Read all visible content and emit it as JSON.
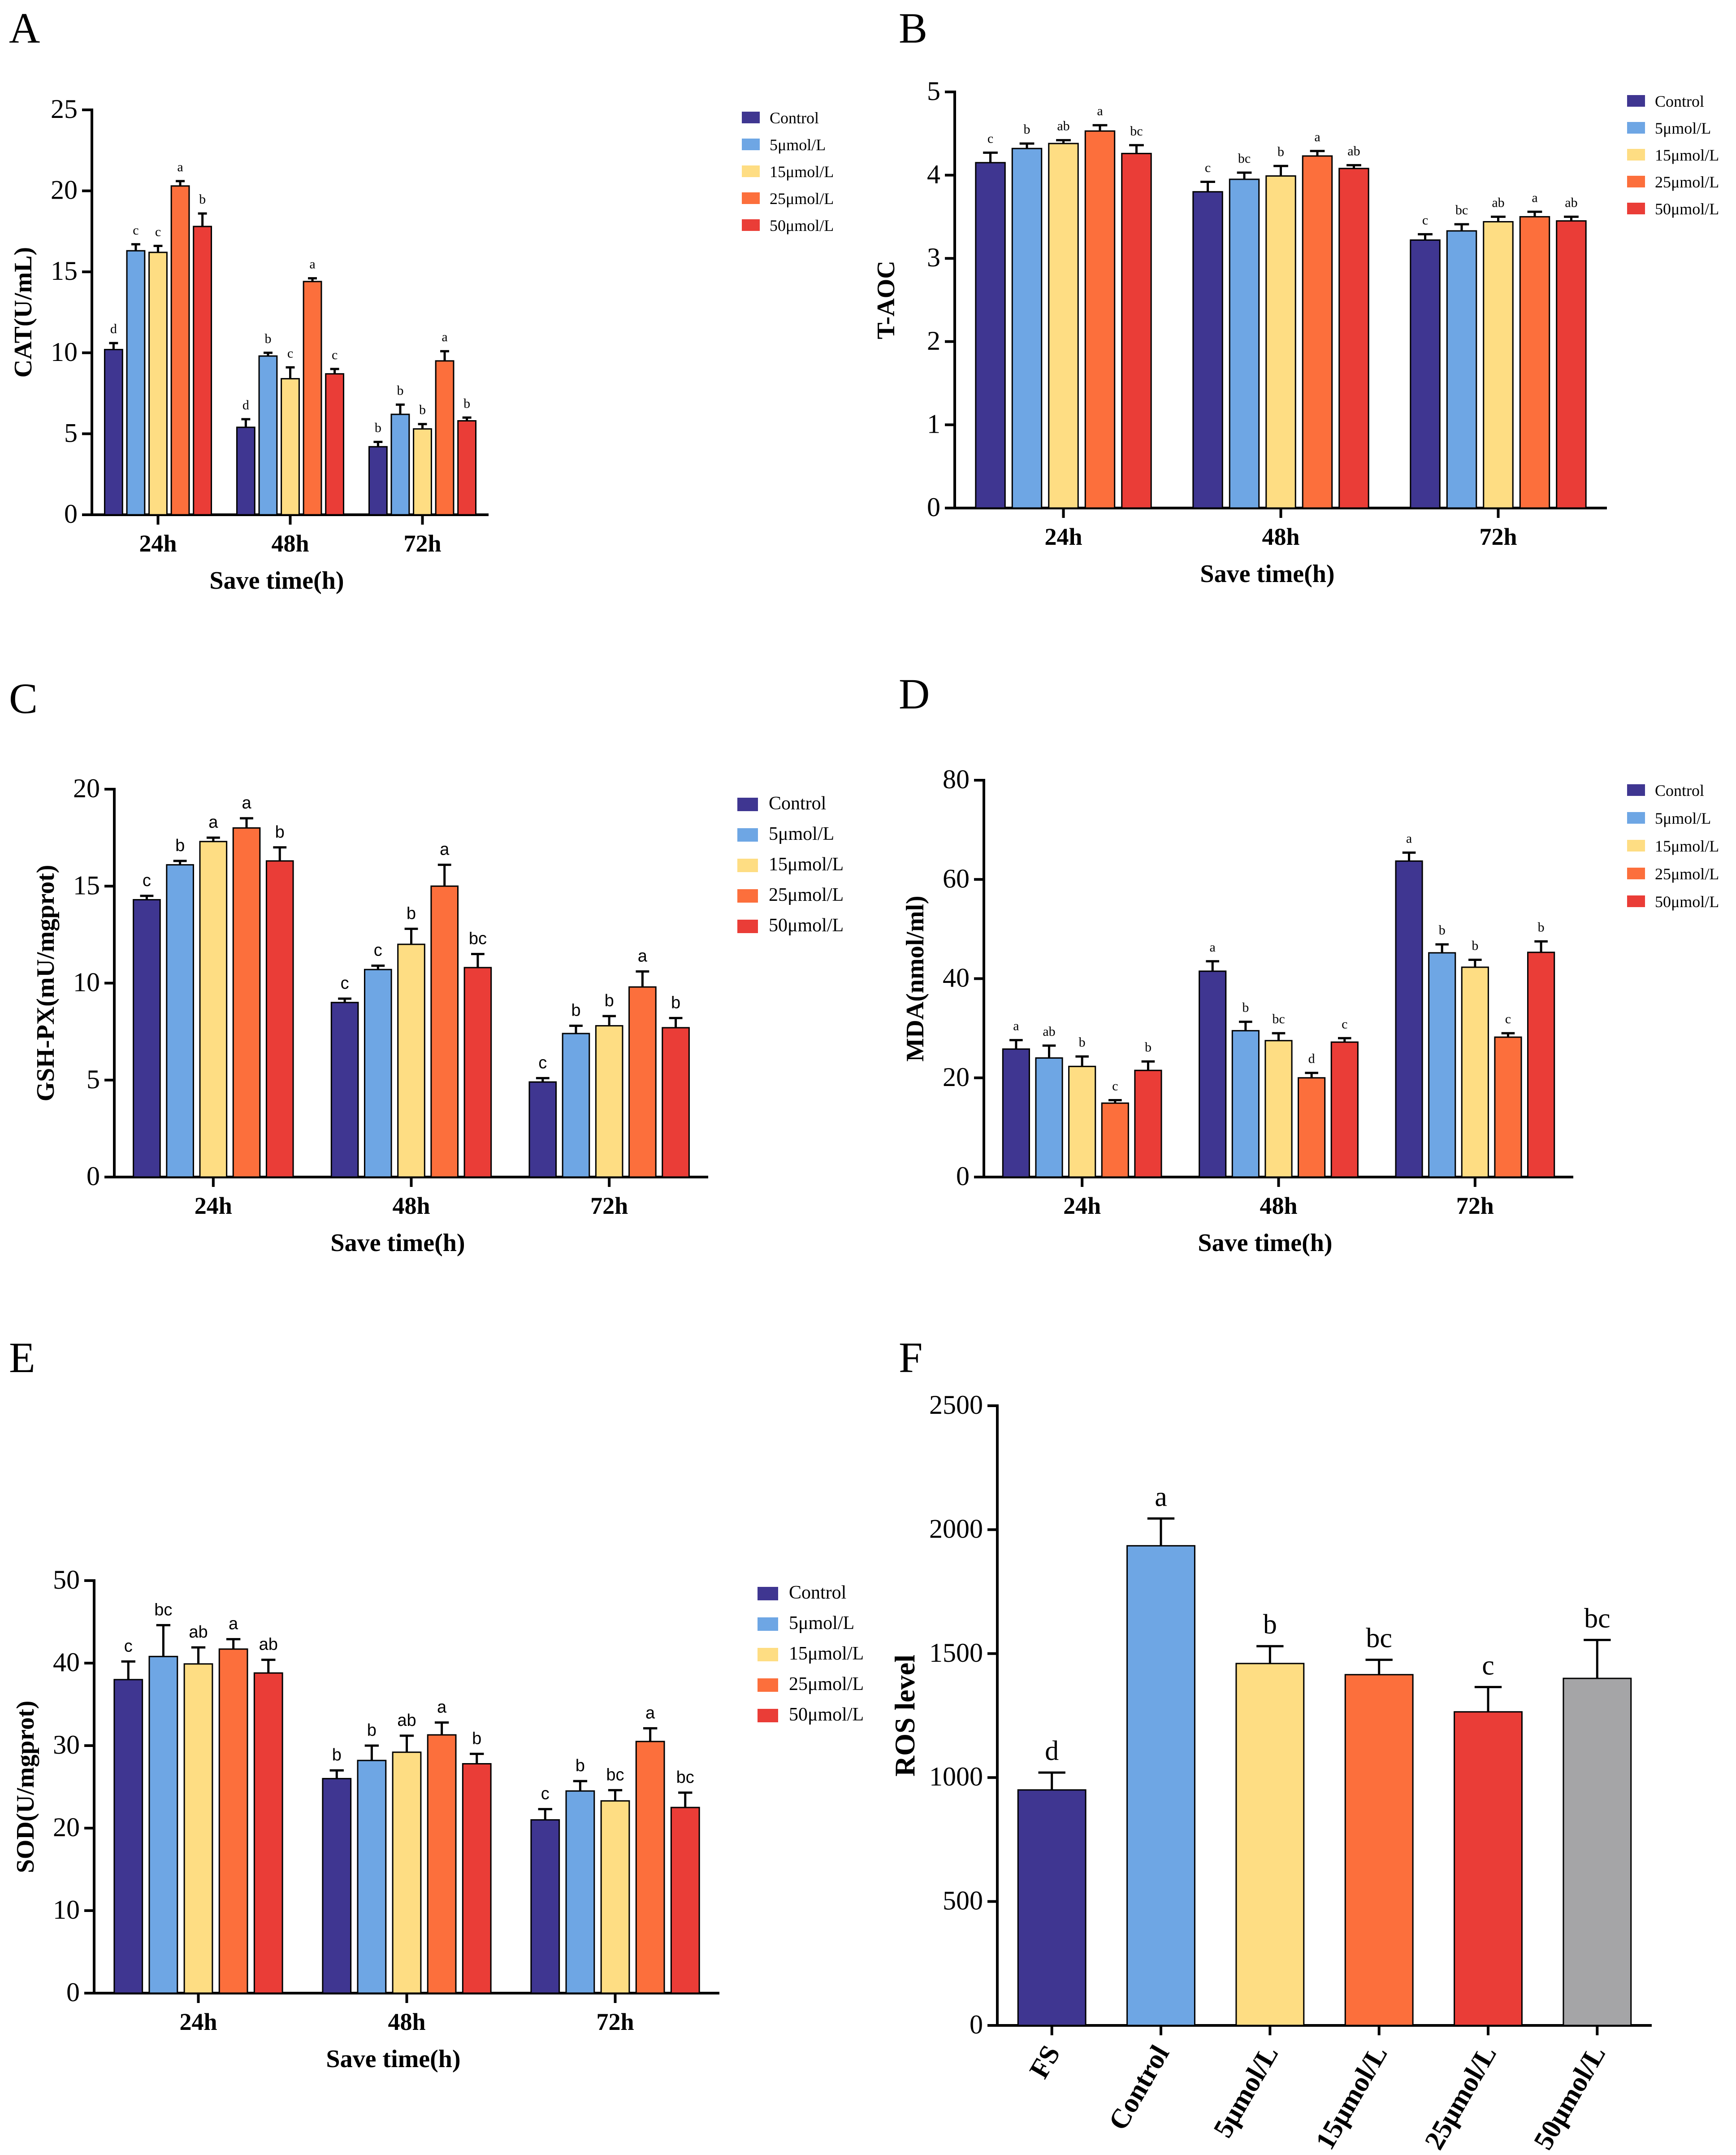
{
  "colors": {
    "Control": "#3f3691",
    "5μmol/L": "#6ea6e4",
    "15μmol/L": "#fedd83",
    "25μmol/L": "#fc6f3c",
    "50μmol/L": "#ea3d37",
    "FS": "#3f3691",
    "FS_grey": "#a5a5a7"
  },
  "chart_data": [
    {
      "id": "A",
      "type": "bar",
      "panel_label": "A",
      "ylabel": "CAT(U/mL)",
      "xlabel": "Save time(h)",
      "categories": [
        "24h",
        "48h",
        "72h"
      ],
      "ylim": [
        0,
        25
      ],
      "yticks": [
        0,
        5,
        10,
        15,
        20,
        25
      ],
      "legend": "top-right",
      "series": [
        {
          "name": "Control",
          "values": [
            10.2,
            5.4,
            4.2
          ],
          "errors": [
            0.4,
            0.5,
            0.3
          ],
          "letters": [
            "d",
            "d",
            "b"
          ]
        },
        {
          "name": "5μmol/L",
          "values": [
            16.3,
            9.8,
            6.2
          ],
          "errors": [
            0.4,
            0.2,
            0.6
          ],
          "letters": [
            "c",
            "b",
            "b"
          ]
        },
        {
          "name": "15μmol/L",
          "values": [
            16.2,
            8.4,
            5.3
          ],
          "errors": [
            0.4,
            0.7,
            0.3
          ],
          "letters": [
            "c",
            "c",
            "b"
          ]
        },
        {
          "name": "25μmol/L",
          "values": [
            20.3,
            14.4,
            9.5
          ],
          "errors": [
            0.3,
            0.2,
            0.6
          ],
          "letters": [
            "a",
            "a",
            "a"
          ]
        },
        {
          "name": "50μmol/L",
          "values": [
            17.8,
            8.7,
            5.8
          ],
          "errors": [
            0.8,
            0.3,
            0.2
          ],
          "letters": [
            "b",
            "c",
            "b"
          ]
        }
      ]
    },
    {
      "id": "B",
      "type": "bar",
      "panel_label": "B",
      "ylabel": "T-AOC",
      "xlabel": "Save time(h)",
      "categories": [
        "24h",
        "48h",
        "72h"
      ],
      "ylim": [
        0,
        5
      ],
      "yticks": [
        0,
        1,
        2,
        3,
        4,
        5
      ],
      "legend": "top-right",
      "series": [
        {
          "name": "Control",
          "values": [
            4.15,
            3.8,
            3.22
          ],
          "errors": [
            0.12,
            0.12,
            0.07
          ],
          "letters": [
            "c",
            "c",
            "c"
          ]
        },
        {
          "name": "5μmol/L",
          "values": [
            4.32,
            3.95,
            3.33
          ],
          "errors": [
            0.06,
            0.08,
            0.08
          ],
          "letters": [
            "b",
            "bc",
            "bc"
          ]
        },
        {
          "name": "15μmol/L",
          "values": [
            4.38,
            3.99,
            3.44
          ],
          "errors": [
            0.04,
            0.12,
            0.06
          ],
          "letters": [
            "ab",
            "b",
            "ab"
          ]
        },
        {
          "name": "25μmol/L",
          "values": [
            4.53,
            4.23,
            3.5
          ],
          "errors": [
            0.07,
            0.06,
            0.06
          ],
          "letters": [
            "a",
            "a",
            "a"
          ]
        },
        {
          "name": "50μmol/L",
          "values": [
            4.26,
            4.08,
            3.45
          ],
          "errors": [
            0.1,
            0.04,
            0.05
          ],
          "letters": [
            "bc",
            "ab",
            "ab"
          ]
        }
      ]
    },
    {
      "id": "C",
      "type": "bar",
      "panel_label": "C",
      "ylabel": "GSH-PX(mU/mgprot)",
      "xlabel": "Save time(h)",
      "categories": [
        "24h",
        "48h",
        "72h"
      ],
      "ylim": [
        0,
        20
      ],
      "yticks": [
        0,
        5,
        10,
        15,
        20
      ],
      "legend": "top-right",
      "series": [
        {
          "name": "Control",
          "values": [
            14.3,
            9.0,
            4.9
          ],
          "errors": [
            0.2,
            0.2,
            0.2
          ],
          "letters": [
            "c",
            "c",
            "c"
          ]
        },
        {
          "name": "5μmol/L",
          "values": [
            16.1,
            10.7,
            7.4
          ],
          "errors": [
            0.2,
            0.2,
            0.4
          ],
          "letters": [
            "b",
            "c",
            "b"
          ]
        },
        {
          "name": "15μmol/L",
          "values": [
            17.3,
            12.0,
            7.8
          ],
          "errors": [
            0.2,
            0.8,
            0.5
          ],
          "letters": [
            "a",
            "b",
            "b"
          ]
        },
        {
          "name": "25μmol/L",
          "values": [
            18.0,
            15.0,
            9.8
          ],
          "errors": [
            0.5,
            1.1,
            0.8
          ],
          "letters": [
            "a",
            "a",
            "a"
          ]
        },
        {
          "name": "50μmol/L",
          "values": [
            16.3,
            10.8,
            7.7
          ],
          "errors": [
            0.7,
            0.7,
            0.5
          ],
          "letters": [
            "b",
            "bc",
            "b"
          ]
        }
      ]
    },
    {
      "id": "D",
      "type": "bar",
      "panel_label": "D",
      "ylabel": "MDA(nmol/ml)",
      "xlabel": "Save time(h)",
      "categories": [
        "24h",
        "48h",
        "72h"
      ],
      "ylim": [
        0,
        80
      ],
      "yticks": [
        0,
        20,
        40,
        60,
        80
      ],
      "legend": "top-right",
      "series": [
        {
          "name": "Control",
          "values": [
            25.8,
            41.5,
            63.7
          ],
          "errors": [
            1.8,
            2.0,
            1.7
          ],
          "letters": [
            "a",
            "a",
            "a"
          ]
        },
        {
          "name": "5μmol/L",
          "values": [
            24.0,
            29.5,
            45.2
          ],
          "errors": [
            2.5,
            1.8,
            1.7
          ],
          "letters": [
            "ab",
            "b",
            "b"
          ]
        },
        {
          "name": "15μmol/L",
          "values": [
            22.3,
            27.5,
            42.3
          ],
          "errors": [
            2.0,
            1.5,
            1.5
          ],
          "letters": [
            "b",
            "bc",
            "b"
          ]
        },
        {
          "name": "25μmol/L",
          "values": [
            14.9,
            20.0,
            28.2
          ],
          "errors": [
            0.6,
            1.0,
            0.8
          ],
          "letters": [
            "c",
            "d",
            "c"
          ]
        },
        {
          "name": "50μmol/L",
          "values": [
            21.5,
            27.2,
            45.3
          ],
          "errors": [
            1.8,
            0.8,
            2.2
          ],
          "letters": [
            "b",
            "c",
            "b"
          ]
        }
      ]
    },
    {
      "id": "E",
      "type": "bar",
      "panel_label": "E",
      "ylabel": "SOD(U/mgprot)",
      "xlabel": "Save time(h)",
      "categories": [
        "24h",
        "48h",
        "72h"
      ],
      "ylim": [
        0,
        50
      ],
      "yticks": [
        0,
        10,
        20,
        30,
        40,
        50
      ],
      "legend": "top-right",
      "series": [
        {
          "name": "Control",
          "values": [
            38.0,
            26.0,
            21.0
          ],
          "errors": [
            2.2,
            1.0,
            1.3
          ],
          "letters": [
            "c",
            "b",
            "c"
          ]
        },
        {
          "name": "5μmol/L",
          "values": [
            40.8,
            28.2,
            24.5
          ],
          "errors": [
            3.8,
            1.8,
            1.2
          ],
          "letters": [
            "bc",
            "b",
            "b"
          ]
        },
        {
          "name": "15μmol/L",
          "values": [
            39.9,
            29.2,
            23.3
          ],
          "errors": [
            2.0,
            2.0,
            1.3
          ],
          "letters": [
            "ab",
            "ab",
            "bc"
          ]
        },
        {
          "name": "25μmol/L",
          "values": [
            41.7,
            31.3,
            30.5
          ],
          "errors": [
            1.2,
            1.5,
            1.6
          ],
          "letters": [
            "a",
            "a",
            "a"
          ]
        },
        {
          "name": "50μmol/L",
          "values": [
            38.8,
            27.8,
            22.5
          ],
          "errors": [
            1.6,
            1.2,
            1.8
          ],
          "letters": [
            "ab",
            "b",
            "bc"
          ]
        }
      ]
    },
    {
      "id": "F",
      "type": "bar",
      "panel_label": "F",
      "ylabel": "ROS level",
      "xlabel": "",
      "categories": [
        "FS",
        "Control",
        "5μmol/L",
        "15μmol/L",
        "25μmol/L",
        "50μmol/L"
      ],
      "ylim": [
        0,
        2500
      ],
      "yticks": [
        0,
        500,
        1000,
        1500,
        2000,
        2500
      ],
      "values": [
        950,
        1935,
        1460,
        1415,
        1265,
        1400
      ],
      "errors": [
        70,
        110,
        70,
        60,
        100,
        155
      ],
      "letters": [
        "d",
        "a",
        "b",
        "bc",
        "c",
        "bc"
      ],
      "bar_colors": [
        "#3f3691",
        "#6ea6e4",
        "#fedd83",
        "#fc6f3c",
        "#ea3d37",
        "#a5a5a7"
      ]
    }
  ]
}
